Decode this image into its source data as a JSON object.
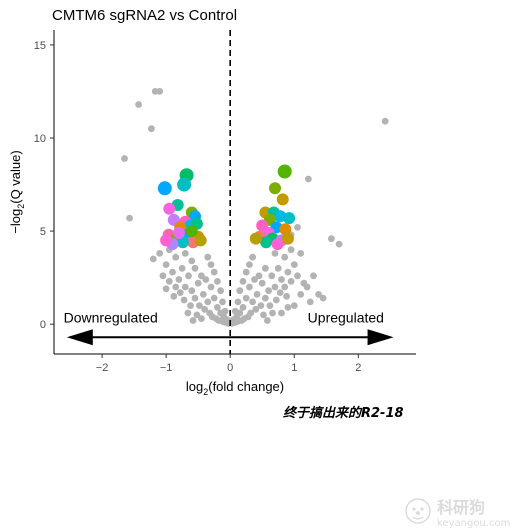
{
  "chart_data": {
    "type": "scatter",
    "title": "CMTM6 sgRNA2 vs Control",
    "xlabel_main": "log",
    "xlabel_sub": "2",
    "xlabel_rest": "(fold change)",
    "ylabel_main": "−log",
    "ylabel_sub": "2",
    "ylabel_rest": "(Q value)",
    "xlim": [
      -2.75,
      2.9
    ],
    "ylim": [
      -1.6,
      15.8
    ],
    "xticks": [
      -2,
      -1,
      0,
      1,
      2
    ],
    "yticks": [
      0,
      5,
      10,
      15
    ],
    "vline_x": 0,
    "annotations": [
      {
        "text": "Downregulated",
        "x": -2.6,
        "y": 0.1
      },
      {
        "text": "Upregulated",
        "x": 2.4,
        "y": 0.1
      }
    ],
    "arrow": {
      "x_start": -2.55,
      "x_end": 2.55,
      "y": -0.7
    },
    "background_color": "#b3b3b3",
    "background_points": [
      [
        -1.43,
        11.8
      ],
      [
        -1.17,
        12.5
      ],
      [
        -1.1,
        12.5
      ],
      [
        -1.23,
        10.5
      ],
      [
        -1.65,
        8.9
      ],
      [
        -1.57,
        5.7
      ],
      [
        2.42,
        10.9
      ],
      [
        1.22,
        7.8
      ],
      [
        1.58,
        4.6
      ],
      [
        1.7,
        4.3
      ],
      [
        1.05,
        5.2
      ],
      [
        0.95,
        4.8
      ],
      [
        -1.1,
        3.8
      ],
      [
        -1.2,
        3.5
      ],
      [
        -1.0,
        3.2
      ],
      [
        -0.95,
        4.0
      ],
      [
        -0.85,
        3.6
      ],
      [
        -0.9,
        2.8
      ],
      [
        -0.75,
        3.0
      ],
      [
        -0.8,
        2.4
      ],
      [
        -0.7,
        2.0
      ],
      [
        -0.65,
        2.6
      ],
      [
        -0.6,
        1.8
      ],
      [
        -0.55,
        1.4
      ],
      [
        -0.5,
        2.2
      ],
      [
        -0.48,
        1.0
      ],
      [
        -0.42,
        1.6
      ],
      [
        -0.4,
        0.8
      ],
      [
        -0.35,
        1.2
      ],
      [
        -0.32,
        0.6
      ],
      [
        -0.3,
        2.0
      ],
      [
        -0.28,
        0.4
      ],
      [
        -0.25,
        1.4
      ],
      [
        -0.22,
        0.3
      ],
      [
        -0.2,
        0.9
      ],
      [
        -0.18,
        0.2
      ],
      [
        -0.15,
        0.6
      ],
      [
        -0.12,
        0.15
      ],
      [
        -0.1,
        0.4
      ],
      [
        -0.08,
        0.1
      ],
      [
        -0.05,
        0.25
      ],
      [
        -0.03,
        0.05
      ],
      [
        -0.6,
        3.4
      ],
      [
        -0.55,
        3.0
      ],
      [
        -0.45,
        2.6
      ],
      [
        -0.38,
        2.4
      ],
      [
        -0.3,
        3.2
      ],
      [
        -0.7,
        3.8
      ],
      [
        -0.62,
        1.0
      ],
      [
        -0.52,
        0.5
      ],
      [
        -0.58,
        0.2
      ],
      [
        -0.66,
        0.6
      ],
      [
        -0.72,
        1.3
      ],
      [
        -0.78,
        1.7
      ],
      [
        -0.85,
        2.0
      ],
      [
        -0.88,
        1.5
      ],
      [
        -0.95,
        2.3
      ],
      [
        -1.0,
        1.9
      ],
      [
        -1.05,
        2.6
      ],
      [
        -0.45,
        0.3
      ],
      [
        -0.35,
        3.6
      ],
      [
        -0.25,
        2.8
      ],
      [
        -0.2,
        2.3
      ],
      [
        -0.15,
        1.8
      ],
      [
        -0.12,
        1.2
      ],
      [
        -0.08,
        0.7
      ],
      [
        0.03,
        0.05
      ],
      [
        0.05,
        0.25
      ],
      [
        0.08,
        0.1
      ],
      [
        0.1,
        0.4
      ],
      [
        0.12,
        0.15
      ],
      [
        0.15,
        0.6
      ],
      [
        0.18,
        0.2
      ],
      [
        0.2,
        0.9
      ],
      [
        0.22,
        0.3
      ],
      [
        0.25,
        1.4
      ],
      [
        0.28,
        0.4
      ],
      [
        0.3,
        2.0
      ],
      [
        0.32,
        0.6
      ],
      [
        0.35,
        1.2
      ],
      [
        0.4,
        0.8
      ],
      [
        0.42,
        1.6
      ],
      [
        0.48,
        1.0
      ],
      [
        0.5,
        2.2
      ],
      [
        0.55,
        1.4
      ],
      [
        0.6,
        1.8
      ],
      [
        0.65,
        2.6
      ],
      [
        0.7,
        2.0
      ],
      [
        0.75,
        3.0
      ],
      [
        0.8,
        2.4
      ],
      [
        0.85,
        3.6
      ],
      [
        0.9,
        2.8
      ],
      [
        0.95,
        4.0
      ],
      [
        1.0,
        3.2
      ],
      [
        1.1,
        3.8
      ],
      [
        1.15,
        2.2
      ],
      [
        1.2,
        2.0
      ],
      [
        1.25,
        1.2
      ],
      [
        1.3,
        2.6
      ],
      [
        1.38,
        1.6
      ],
      [
        1.45,
        1.4
      ],
      [
        1.0,
        1.0
      ],
      [
        0.55,
        3.0
      ],
      [
        0.45,
        2.6
      ],
      [
        0.38,
        2.4
      ],
      [
        0.3,
        3.2
      ],
      [
        0.7,
        3.8
      ],
      [
        0.62,
        1.0
      ],
      [
        0.52,
        0.5
      ],
      [
        0.58,
        0.2
      ],
      [
        0.66,
        0.6
      ],
      [
        0.72,
        1.3
      ],
      [
        0.78,
        1.7
      ],
      [
        0.85,
        2.0
      ],
      [
        0.88,
        1.5
      ],
      [
        0.95,
        2.3
      ],
      [
        1.05,
        2.6
      ],
      [
        0.35,
        3.6
      ],
      [
        0.25,
        2.8
      ],
      [
        0.2,
        2.3
      ],
      [
        0.15,
        1.8
      ],
      [
        0.12,
        1.2
      ],
      [
        0.08,
        0.7
      ],
      [
        1.1,
        1.6
      ],
      [
        0.9,
        0.9
      ],
      [
        0.8,
        0.6
      ]
    ],
    "highlight_points": [
      {
        "x": -1.02,
        "y": 7.3,
        "color": "#00a9ff",
        "size": 7
      },
      {
        "x": -0.68,
        "y": 8.0,
        "color": "#00be67",
        "size": 7
      },
      {
        "x": -0.72,
        "y": 7.5,
        "color": "#00bfc4",
        "size": 7
      },
      {
        "x": -0.82,
        "y": 6.4,
        "color": "#00c19a",
        "size": 6
      },
      {
        "x": -0.95,
        "y": 6.2,
        "color": "#f763e0",
        "size": 6
      },
      {
        "x": -0.6,
        "y": 6.0,
        "color": "#7cae00",
        "size": 6
      },
      {
        "x": -0.55,
        "y": 5.8,
        "color": "#00a9ff",
        "size": 6
      },
      {
        "x": -0.88,
        "y": 5.6,
        "color": "#c77cff",
        "size": 6
      },
      {
        "x": -0.7,
        "y": 5.5,
        "color": "#ff61c3",
        "size": 6
      },
      {
        "x": -0.62,
        "y": 5.3,
        "color": "#00b8e7",
        "size": 6
      },
      {
        "x": -0.78,
        "y": 5.2,
        "color": "#de8c00",
        "size": 6
      },
      {
        "x": -0.52,
        "y": 5.4,
        "color": "#00c08b",
        "size": 6
      },
      {
        "x": -0.96,
        "y": 4.8,
        "color": "#ff64b0",
        "size": 6
      },
      {
        "x": -0.84,
        "y": 4.6,
        "color": "#7cae00",
        "size": 6
      },
      {
        "x": -0.66,
        "y": 4.8,
        "color": "#00a9ff",
        "size": 6
      },
      {
        "x": -0.5,
        "y": 4.7,
        "color": "#c49a00",
        "size": 6
      },
      {
        "x": -0.58,
        "y": 4.4,
        "color": "#f8766d",
        "size": 6
      },
      {
        "x": -0.74,
        "y": 4.4,
        "color": "#00bfc4",
        "size": 6
      },
      {
        "x": -0.9,
        "y": 4.3,
        "color": "#ae87ff",
        "size": 6
      },
      {
        "x": -0.46,
        "y": 4.5,
        "color": "#b79f00",
        "size": 6
      },
      {
        "x": -1.0,
        "y": 4.5,
        "color": "#fd61d1",
        "size": 6
      },
      {
        "x": -0.8,
        "y": 4.9,
        "color": "#e76bf3",
        "size": 6
      },
      {
        "x": -0.6,
        "y": 5.0,
        "color": "#53b400",
        "size": 6
      },
      {
        "x": 0.85,
        "y": 8.2,
        "color": "#53b400",
        "size": 7
      },
      {
        "x": 0.7,
        "y": 7.3,
        "color": "#7cae00",
        "size": 6
      },
      {
        "x": 0.82,
        "y": 6.7,
        "color": "#c49a00",
        "size": 6
      },
      {
        "x": 0.92,
        "y": 5.7,
        "color": "#00bfc4",
        "size": 6
      },
      {
        "x": 0.55,
        "y": 6.0,
        "color": "#c49a00",
        "size": 6
      },
      {
        "x": 0.68,
        "y": 6.0,
        "color": "#00c19a",
        "size": 6
      },
      {
        "x": 0.78,
        "y": 5.8,
        "color": "#00b8e7",
        "size": 6
      },
      {
        "x": 0.62,
        "y": 5.6,
        "color": "#7cae00",
        "size": 6
      },
      {
        "x": 0.5,
        "y": 5.3,
        "color": "#ff61c3",
        "size": 6
      },
      {
        "x": 0.72,
        "y": 5.2,
        "color": "#00a9ff",
        "size": 6
      },
      {
        "x": 0.86,
        "y": 5.1,
        "color": "#de8c00",
        "size": 6
      },
      {
        "x": 0.6,
        "y": 4.9,
        "color": "#f763e0",
        "size": 6
      },
      {
        "x": 0.46,
        "y": 4.7,
        "color": "#f8766d",
        "size": 6
      },
      {
        "x": 0.66,
        "y": 4.6,
        "color": "#00be67",
        "size": 6
      },
      {
        "x": 0.8,
        "y": 4.5,
        "color": "#ae87ff",
        "size": 6
      },
      {
        "x": 0.9,
        "y": 4.6,
        "color": "#c49a00",
        "size": 6
      },
      {
        "x": 0.56,
        "y": 4.4,
        "color": "#00c08b",
        "size": 6
      },
      {
        "x": 0.74,
        "y": 4.3,
        "color": "#fd61d1",
        "size": 6
      },
      {
        "x": 0.4,
        "y": 4.6,
        "color": "#b79f00",
        "size": 6
      }
    ]
  },
  "caption": "终于搞出来的R2-18",
  "watermark": {
    "icon": "clown-face-icon",
    "brand": "科研狗",
    "url": "keyangou.com"
  }
}
